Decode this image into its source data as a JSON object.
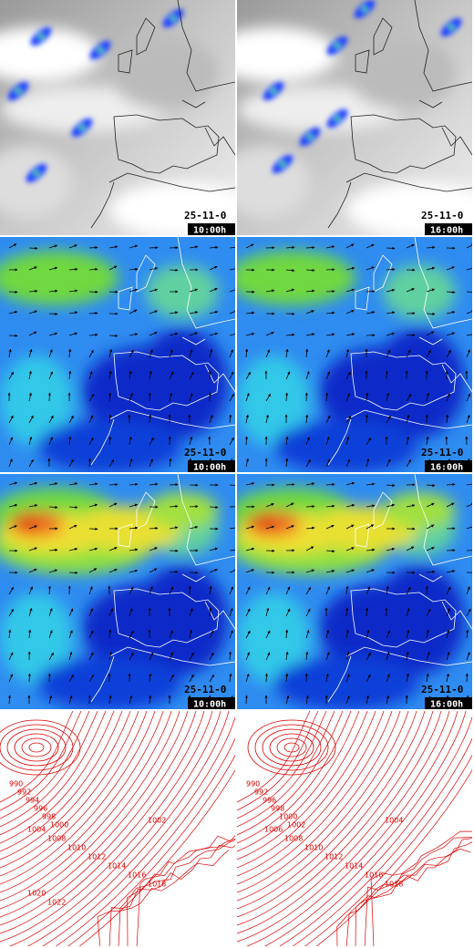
{
  "rows": [
    {
      "panels": [
        {
          "date": "25-11-0",
          "time": "10:00h"
        },
        {
          "date": "25-11-0",
          "time": "16:00h"
        }
      ]
    },
    {
      "panels": [
        {
          "date": "25-11-0",
          "time": "10:00h"
        },
        {
          "date": "25-11-0",
          "time": "16:00h"
        }
      ]
    },
    {
      "panels": [
        {
          "date": "25-11-0",
          "time": "10:00h"
        },
        {
          "date": "25-11-0",
          "time": "16:00h"
        }
      ]
    },
    {
      "panels": [
        {
          "isobar_labels": [
            "990",
            "992",
            "994",
            "996",
            "998",
            "1000",
            "1002",
            "1004",
            "1008",
            "1010",
            "1012",
            "1014",
            "1016",
            "1018",
            "1020",
            "1022"
          ]
        },
        {
          "isobar_labels": [
            "990",
            "992",
            "996",
            "998",
            "1000",
            "1002",
            "1004",
            "1006",
            "1008",
            "1010",
            "1012",
            "1014",
            "1016",
            "1018"
          ]
        }
      ]
    }
  ]
}
